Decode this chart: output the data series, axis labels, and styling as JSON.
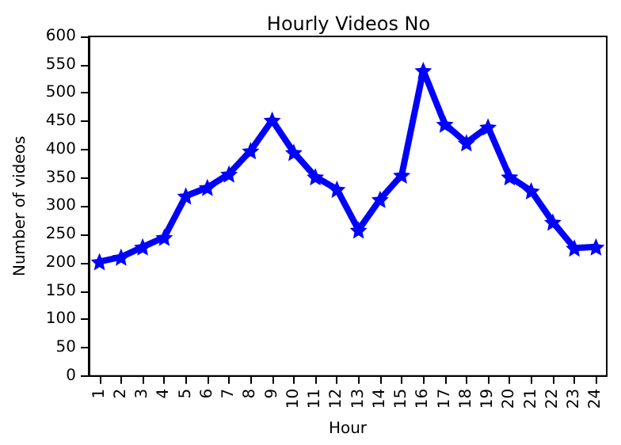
{
  "chart_data": {
    "type": "line",
    "title": "Hourly Videos No",
    "xlabel": "Hour",
    "ylabel": "Number of videos",
    "categories": [
      "1",
      "2",
      "3",
      "4",
      "5",
      "6",
      "7",
      "8",
      "9",
      "10",
      "11",
      "12",
      "13",
      "14",
      "15",
      "16",
      "17",
      "18",
      "19",
      "20",
      "21",
      "22",
      "23",
      "24"
    ],
    "series": [
      {
        "color": "#0000ff",
        "values": [
          202,
          210,
          228,
          245,
          318,
          333,
          357,
          398,
          452,
          395,
          352,
          330,
          258,
          312,
          355,
          540,
          445,
          412,
          440,
          352,
          327,
          272,
          226,
          228
        ]
      }
    ],
    "ylim": [
      0,
      600
    ],
    "yticks": [
      0,
      50,
      100,
      150,
      200,
      250,
      300,
      350,
      400,
      450,
      500,
      550,
      600
    ],
    "marker": "star",
    "line_style": "solid",
    "grid": false
  }
}
